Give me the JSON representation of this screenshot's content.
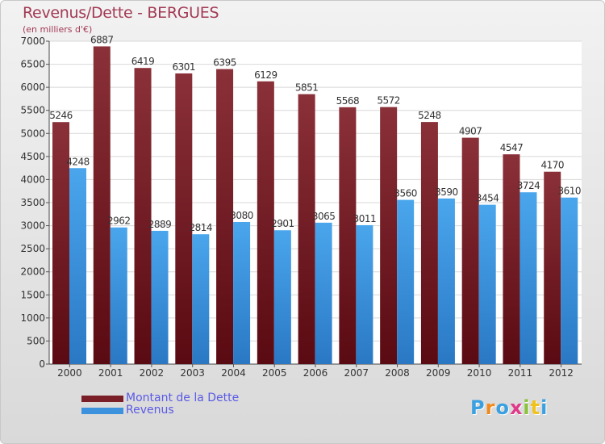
{
  "colors": {
    "dette": "#7a1f27",
    "revenus": "#3d92dd"
  },
  "logo": {
    "text": "Proxiti"
  },
  "chart_data": {
    "type": "bar",
    "title": "Revenus/Dette - BERGUES",
    "subtitle": "(en milliers d'€)",
    "categories": [
      "2000",
      "2001",
      "2002",
      "2003",
      "2004",
      "2005",
      "2006",
      "2007",
      "2008",
      "2009",
      "2010",
      "2011",
      "2012"
    ],
    "series": [
      {
        "name": "Montant de la Dette",
        "values": [
          5246,
          6887,
          6419,
          6301,
          6395,
          6129,
          5851,
          5568,
          5572,
          5248,
          4907,
          4547,
          4170
        ]
      },
      {
        "name": "Revenus",
        "values": [
          4248,
          2962,
          2889,
          2814,
          3080,
          2901,
          3065,
          3011,
          3560,
          3590,
          3454,
          3724,
          3610
        ]
      }
    ],
    "yticks": [
      0,
      500,
      1000,
      1500,
      2000,
      2500,
      3000,
      3500,
      4000,
      4500,
      5000,
      5500,
      6000,
      6500,
      7000
    ],
    "ylim": [
      0,
      7000
    ],
    "grid": true,
    "legend_position": "bottom-left"
  }
}
